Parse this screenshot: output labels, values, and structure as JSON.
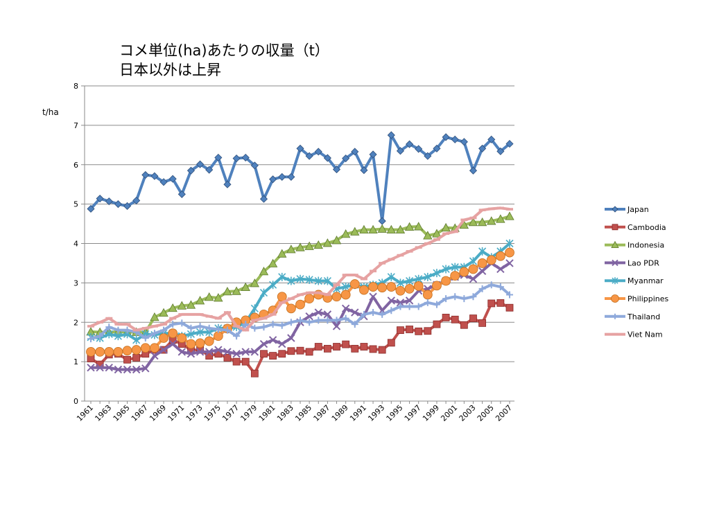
{
  "chart_data": {
    "type": "line",
    "title_lines": [
      "コメ単位(ha)あたりの収量（t）",
      "日本以外は上昇"
    ],
    "ylabel": "t/ha",
    "xlabel": "",
    "ylim": [
      0,
      8
    ],
    "yticks": [
      0,
      1,
      2,
      3,
      4,
      5,
      6,
      7,
      8
    ],
    "grid": true,
    "legend_position": "right",
    "x": [
      1961,
      1962,
      1963,
      1964,
      1965,
      1966,
      1967,
      1968,
      1969,
      1970,
      1971,
      1972,
      1973,
      1974,
      1975,
      1976,
      1977,
      1978,
      1979,
      1980,
      1981,
      1982,
      1983,
      1984,
      1985,
      1986,
      1987,
      1988,
      1989,
      1990,
      1991,
      1992,
      1993,
      1994,
      1995,
      1996,
      1997,
      1998,
      1999,
      2000,
      2001,
      2002,
      2003,
      2004,
      2005,
      2006,
      2007
    ],
    "xtick_labels": [
      "1961",
      "1963",
      "1965",
      "1967",
      "1969",
      "1971",
      "1973",
      "1975",
      "1977",
      "1979",
      "1981",
      "1983",
      "1985",
      "1987",
      "1989",
      "1991",
      "1993",
      "1995",
      "1997",
      "1999",
      "2001",
      "2003",
      "2005",
      "2007"
    ],
    "series": [
      {
        "name": "Japan",
        "color": "#4F81BD",
        "marker": "diamond",
        "values": [
          4.88,
          5.14,
          5.07,
          5.0,
          4.95,
          5.09,
          5.74,
          5.71,
          5.56,
          5.64,
          5.25,
          5.85,
          6.01,
          5.87,
          6.18,
          5.5,
          6.16,
          6.18,
          5.98,
          5.13,
          5.63,
          5.69,
          5.69,
          6.41,
          6.22,
          6.33,
          6.17,
          5.88,
          6.16,
          6.33,
          5.86,
          6.26,
          4.57,
          6.75,
          6.35,
          6.52,
          6.4,
          6.22,
          6.41,
          6.7,
          6.64,
          6.58,
          5.85,
          6.41,
          6.64,
          6.34,
          6.53
        ]
      },
      {
        "name": "Cambodia",
        "color": "#C0504D",
        "marker": "square",
        "values": [
          1.08,
          0.93,
          1.18,
          1.2,
          1.05,
          1.1,
          1.2,
          1.3,
          1.3,
          1.55,
          1.45,
          1.3,
          1.3,
          1.15,
          1.2,
          1.1,
          1.0,
          1.0,
          0.7,
          1.2,
          1.15,
          1.2,
          1.27,
          1.28,
          1.25,
          1.38,
          1.33,
          1.38,
          1.44,
          1.33,
          1.38,
          1.32,
          1.3,
          1.48,
          1.8,
          1.82,
          1.77,
          1.78,
          1.95,
          2.12,
          2.07,
          1.93,
          2.1,
          1.98,
          2.48,
          2.49,
          2.37
        ]
      },
      {
        "name": "Indonesia",
        "color": "#9BBB59",
        "marker": "triangle",
        "values": [
          1.76,
          1.75,
          1.75,
          1.76,
          1.75,
          1.75,
          1.75,
          2.13,
          2.24,
          2.36,
          2.42,
          2.44,
          2.55,
          2.64,
          2.62,
          2.78,
          2.79,
          2.89,
          2.99,
          3.29,
          3.49,
          3.74,
          3.85,
          3.9,
          3.93,
          3.96,
          4.01,
          4.08,
          4.24,
          4.3,
          4.35,
          4.35,
          4.37,
          4.35,
          4.35,
          4.42,
          4.43,
          4.2,
          4.25,
          4.4,
          4.39,
          4.47,
          4.54,
          4.54,
          4.57,
          4.62,
          4.69
        ]
      },
      {
        "name": "Lao PDR",
        "color": "#8064A2",
        "marker": "x",
        "values": [
          0.85,
          0.85,
          0.85,
          0.8,
          0.8,
          0.8,
          0.83,
          1.15,
          1.3,
          1.45,
          1.25,
          1.2,
          1.25,
          1.25,
          1.3,
          1.25,
          1.2,
          1.25,
          1.25,
          1.45,
          1.55,
          1.45,
          1.6,
          2.0,
          2.15,
          2.25,
          2.2,
          1.9,
          2.35,
          2.25,
          2.15,
          2.65,
          2.3,
          2.55,
          2.5,
          2.55,
          2.8,
          2.85,
          2.95,
          3.05,
          3.15,
          3.2,
          3.1,
          3.3,
          3.5,
          3.35,
          3.5
        ]
      },
      {
        "name": "Myanmar",
        "color": "#4BACC6",
        "marker": "star",
        "values": [
          1.62,
          1.6,
          1.7,
          1.65,
          1.7,
          1.55,
          1.7,
          1.68,
          1.72,
          1.72,
          1.65,
          1.7,
          1.75,
          1.75,
          1.85,
          1.85,
          1.88,
          2.0,
          2.35,
          2.75,
          2.95,
          3.15,
          3.05,
          3.1,
          3.08,
          3.05,
          3.05,
          2.85,
          2.9,
          2.95,
          2.9,
          2.95,
          3.0,
          3.15,
          3.0,
          3.05,
          3.1,
          3.15,
          3.25,
          3.35,
          3.4,
          3.4,
          3.55,
          3.8,
          3.65,
          3.8,
          4.0
        ]
      },
      {
        "name": "Philippines",
        "color": "#F79646",
        "marker": "circle",
        "values": [
          1.25,
          1.25,
          1.25,
          1.25,
          1.28,
          1.3,
          1.35,
          1.35,
          1.6,
          1.72,
          1.6,
          1.45,
          1.47,
          1.52,
          1.65,
          1.84,
          2.0,
          2.05,
          2.12,
          2.2,
          2.3,
          2.65,
          2.35,
          2.45,
          2.6,
          2.7,
          2.62,
          2.65,
          2.7,
          2.97,
          2.82,
          2.9,
          2.88,
          2.9,
          2.8,
          2.85,
          2.92,
          2.7,
          2.93,
          3.05,
          3.18,
          3.28,
          3.35,
          3.5,
          3.58,
          3.68,
          3.77
        ]
      },
      {
        "name": "Thailand",
        "color": "#8EA9DB",
        "marker": "plus",
        "values": [
          1.58,
          1.65,
          1.88,
          1.8,
          1.8,
          1.75,
          1.6,
          1.72,
          1.8,
          1.95,
          1.98,
          1.85,
          1.9,
          1.85,
          1.82,
          1.8,
          1.65,
          1.95,
          1.85,
          1.88,
          1.95,
          1.92,
          2.0,
          2.05,
          2.0,
          2.05,
          2.05,
          2.05,
          2.1,
          1.95,
          2.2,
          2.25,
          2.2,
          2.3,
          2.4,
          2.4,
          2.4,
          2.5,
          2.45,
          2.6,
          2.65,
          2.6,
          2.65,
          2.85,
          2.95,
          2.9,
          2.7
        ]
      },
      {
        "name": "Viet Nam",
        "color": "#E6A2A2",
        "marker": "dash",
        "values": [
          1.9,
          2.0,
          2.1,
          1.95,
          1.95,
          1.8,
          1.85,
          1.9,
          1.95,
          2.1,
          2.2,
          2.2,
          2.2,
          2.15,
          2.1,
          2.25,
          1.9,
          1.8,
          2.05,
          2.1,
          2.2,
          2.5,
          2.6,
          2.7,
          2.75,
          2.75,
          2.7,
          2.95,
          3.2,
          3.2,
          3.1,
          3.3,
          3.5,
          3.6,
          3.7,
          3.8,
          3.9,
          4.0,
          4.1,
          4.25,
          4.3,
          4.6,
          4.65,
          4.85,
          4.88,
          4.9,
          4.87
        ]
      }
    ]
  }
}
